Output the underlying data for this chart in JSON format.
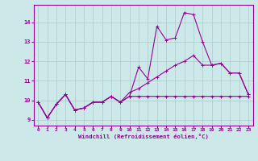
{
  "xlabel": "Windchill (Refroidissement éolien,°C)",
  "bg_color": "#cce8e8",
  "grid_color": "#aacccc",
  "line_color": "#990099",
  "x_values": [
    0,
    1,
    2,
    3,
    4,
    5,
    6,
    7,
    8,
    9,
    10,
    11,
    12,
    13,
    14,
    15,
    16,
    17,
    18,
    19,
    20,
    21,
    22,
    23
  ],
  "line1": [
    9.9,
    9.1,
    9.8,
    10.3,
    9.5,
    9.6,
    9.9,
    9.9,
    10.2,
    9.9,
    10.2,
    11.7,
    11.1,
    13.8,
    13.1,
    13.2,
    14.5,
    14.4,
    13.0,
    11.8,
    11.9,
    11.4,
    11.4,
    10.3
  ],
  "line2": [
    9.9,
    9.1,
    9.8,
    10.3,
    9.5,
    9.6,
    9.9,
    9.9,
    10.2,
    9.9,
    10.4,
    10.6,
    10.9,
    11.2,
    11.5,
    11.8,
    12.0,
    12.3,
    11.8,
    11.8,
    11.9,
    11.4,
    11.4,
    10.3
  ],
  "line3": [
    9.9,
    9.1,
    9.8,
    10.3,
    9.5,
    9.6,
    9.9,
    9.9,
    10.2,
    9.9,
    10.2,
    10.2,
    10.2,
    10.2,
    10.2,
    10.2,
    10.2,
    10.2,
    10.2,
    10.2,
    10.2,
    10.2,
    10.2,
    10.2
  ],
  "ylim": [
    8.7,
    14.9
  ],
  "yticks": [
    9,
    10,
    11,
    12,
    13,
    14
  ],
  "xticks": [
    0,
    1,
    2,
    3,
    4,
    5,
    6,
    7,
    8,
    9,
    10,
    11,
    12,
    13,
    14,
    15,
    16,
    17,
    18,
    19,
    20,
    21,
    22,
    23
  ]
}
